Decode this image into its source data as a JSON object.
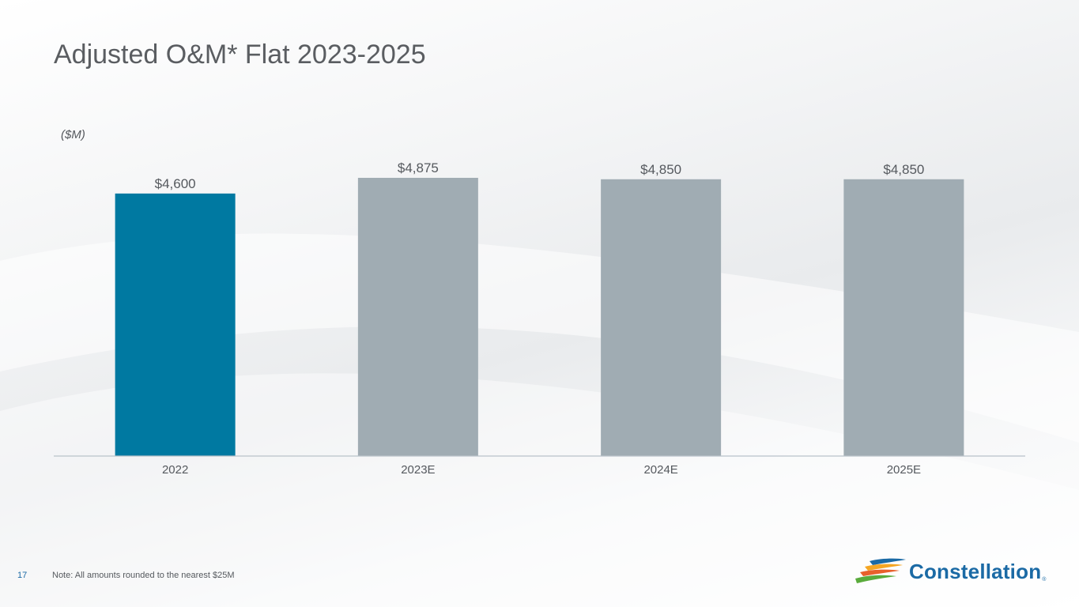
{
  "slide": {
    "title": "Adjusted O&M* Flat 2023-2025",
    "unit_label": "($M)",
    "page_number": "17",
    "note": "Note: All amounts rounded to the nearest $25M"
  },
  "logo": {
    "text": "Constellation",
    "reg_mark": "®",
    "text_color": "#1b6aa5"
  },
  "colors": {
    "actual": "#0079a1",
    "estimate": "#a0acb3",
    "axis": "#b9c2c9",
    "page_number": "#1b6aa5"
  },
  "chart_data": {
    "type": "bar",
    "title": "Adjusted O&M* Flat 2023-2025",
    "ylabel": "($M)",
    "xlabel": "",
    "categories": [
      "2022",
      "2023E",
      "2024E",
      "2025E"
    ],
    "values": [
      4600,
      4875,
      4850,
      4850
    ],
    "value_labels": [
      "$4,600",
      "$4,875",
      "$4,850",
      "$4,850"
    ],
    "bar_kind": [
      "actual",
      "estimate",
      "estimate",
      "estimate"
    ],
    "grid": false
  }
}
